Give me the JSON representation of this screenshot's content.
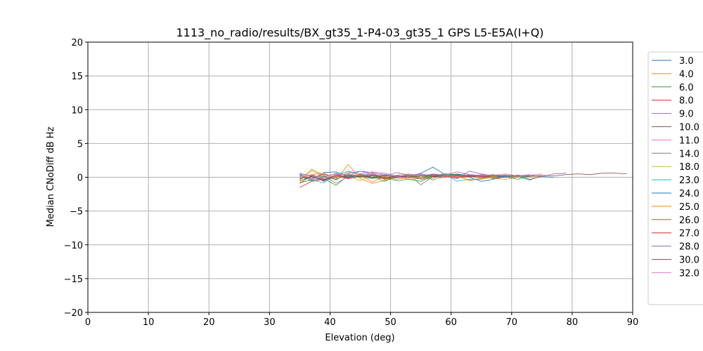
{
  "chart_data": {
    "type": "line",
    "title": "1113_no_radio/results/BX_gt35_1-P4-03_gt35_1 GPS L5-E5A(I+Q)",
    "xlabel": "Elevation (deg)",
    "ylabel": "Median CNoDiff dB Hz",
    "xlim": [
      0,
      90
    ],
    "ylim": [
      -20,
      20
    ],
    "xticks": [
      0,
      10,
      20,
      30,
      40,
      50,
      60,
      70,
      80,
      90
    ],
    "yticks": [
      -20,
      -15,
      -10,
      -5,
      0,
      5,
      10,
      15,
      20
    ],
    "grid": true,
    "legend_placement": "right",
    "x_step": 2,
    "series": [
      {
        "name": "3.0",
        "color": "#1f77b4",
        "x_start": 35,
        "values": [
          0.5,
          -0.3,
          0.7,
          0.8,
          0.2,
          0.1,
          0.4,
          -0.2,
          0.3,
          0.1,
          0.6,
          1.5,
          0.4,
          0.2,
          0.0,
          -0.6,
          -0.3,
          0.1,
          0.2,
          0.3,
          0.1,
          0.0
        ]
      },
      {
        "name": "4.0",
        "color": "#ff7f0e",
        "x_start": 35,
        "values": [
          -0.5,
          1.0,
          0.2,
          -0.4,
          1.9,
          -0.2,
          -0.9,
          -0.5,
          0.1,
          -0.3,
          -0.2,
          0.0,
          0.2,
          -0.1,
          0.3,
          0.1,
          -0.2,
          -0.3,
          0.0,
          0.2,
          0.1
        ]
      },
      {
        "name": "6.0",
        "color": "#2ca02c",
        "x_start": 35,
        "values": [
          -0.8,
          -0.4,
          -0.2,
          -1.2,
          0.3,
          0.1,
          -0.2,
          0.0,
          -0.5,
          -0.3,
          -0.6,
          0.2,
          0.1,
          0.4,
          0.3,
          0.2,
          -0.1,
          0.0,
          0.1,
          -0.4,
          0.2
        ]
      },
      {
        "name": "8.0",
        "color": "#d62728",
        "x_start": 35,
        "values": [
          -1.5,
          -0.6,
          -0.3,
          0.2,
          -0.1,
          0.4,
          0.0,
          -0.2,
          0.3,
          -0.1,
          0.2,
          0.1,
          0.0,
          0.3,
          0.2,
          -0.1,
          0.1,
          0.2,
          0.3,
          0.2
        ]
      },
      {
        "name": "9.0",
        "color": "#9467bd",
        "x_start": 35,
        "values": [
          0.3,
          -0.5,
          0.0,
          0.6,
          0.2,
          0.9,
          0.7,
          0.3,
          0.0,
          0.5,
          0.2,
          0.4,
          0.1,
          -0.2,
          0.9,
          0.5,
          0.2,
          0.0,
          0.3,
          -0.3,
          0.1,
          0.5,
          0.6
        ]
      },
      {
        "name": "10.0",
        "color": "#8c564b",
        "x_start": 35,
        "values": [
          -0.2,
          0.1,
          -0.4,
          0.0,
          0.3,
          0.2,
          0.6,
          -0.3,
          0.1,
          0.0,
          0.2,
          0.3,
          0.5,
          0.4,
          0.1,
          0.2,
          0.0,
          0.1,
          0.3,
          0.2
        ]
      },
      {
        "name": "11.0",
        "color": "#e377c2",
        "x_start": 35,
        "values": [
          0.2,
          -0.3,
          0.4,
          0.1,
          -0.2,
          0.5,
          0.8,
          0.6,
          0.2,
          0.3,
          0.4,
          0.2,
          0.1,
          0.3,
          0.0,
          0.4,
          0.2,
          0.3,
          0.1,
          0.3,
          0.5
        ]
      },
      {
        "name": "14.0",
        "color": "#7f7f7f",
        "x_start": 35,
        "values": [
          0.4,
          -0.6,
          0.2,
          -0.9,
          0.1,
          0.3,
          -0.1,
          0.2,
          0.0,
          0.4,
          -1.1,
          0.1,
          0.3,
          0.5,
          0.2,
          0.1,
          -0.2,
          0.2
        ]
      },
      {
        "name": "18.0",
        "color": "#bcbd22",
        "x_start": 35,
        "values": [
          -0.4,
          1.2,
          0.3,
          0.1,
          0.2,
          -0.5,
          0.4,
          0.1,
          0.3,
          0.5,
          0.0,
          0.2,
          0.4,
          0.1,
          -0.4,
          -0.3,
          0.0,
          0.3,
          0.2,
          0.1
        ]
      },
      {
        "name": "23.0",
        "color": "#17becf",
        "x_start": 35,
        "values": [
          0.0,
          -0.4,
          -0.8,
          0.3,
          0.9,
          0.5,
          0.2,
          0.0,
          -0.1,
          0.2,
          -0.3,
          -0.2,
          0.4,
          -0.6,
          -0.3,
          -0.2,
          0.1,
          0.2,
          0.0,
          0.2
        ]
      },
      {
        "name": "24.0",
        "color": "#1f77b4",
        "x_start": 35,
        "values": [
          0.6,
          0.1,
          -0.5,
          0.3,
          0.0,
          0.2,
          -0.1,
          0.4,
          0.2,
          0.0,
          0.3,
          0.1,
          0.2,
          0.4,
          0.3,
          0.1,
          0.2,
          0.0,
          0.3
        ]
      },
      {
        "name": "25.0",
        "color": "#ff7f0e",
        "x_start": 35,
        "values": [
          -0.3,
          0.4,
          0.6,
          -0.2,
          0.8,
          0.3,
          -0.7,
          0.1,
          -0.3,
          0.0,
          0.2,
          -0.4,
          0.1,
          0.3,
          -0.5,
          -0.2,
          0.1,
          0.3,
          0.0
        ]
      },
      {
        "name": "26.0",
        "color": "#2ca02c",
        "x_start": 35,
        "values": [
          -0.6,
          0.2,
          0.1,
          -0.3,
          0.4,
          0.0,
          0.2,
          -0.6,
          0.1,
          0.3,
          0.0,
          0.2,
          0.5,
          0.3,
          0.1,
          0.2,
          0.4,
          0.1,
          -0.3,
          0.2
        ]
      },
      {
        "name": "27.0",
        "color": "#d62728",
        "x_start": 35,
        "values": [
          -0.9,
          0.3,
          -0.6,
          0.5,
          -0.2,
          0.1,
          0.3,
          -0.1,
          0.0,
          0.2,
          -0.2,
          0.1,
          0.3,
          0.0,
          0.2,
          0.1,
          0.2,
          0.3
        ]
      },
      {
        "name": "28.0",
        "color": "#9467bd",
        "x_start": 35,
        "values": [
          0.2,
          -0.2,
          0.5,
          -0.4,
          0.6,
          0.9,
          0.4,
          0.2,
          0.7,
          0.3,
          0.5,
          0.2,
          0.3,
          0.8,
          0.4,
          0.3,
          0.2,
          0.1,
          0.2,
          0.4
        ]
      },
      {
        "name": "30.0",
        "color": "#8c564b",
        "x_start": 35,
        "values": [
          -0.1,
          0.0,
          -0.3,
          0.2,
          0.1,
          0.3,
          0.0,
          0.2,
          0.1,
          0.3,
          0.2,
          0.4,
          0.3,
          0.2,
          0.1,
          0.3,
          0.2,
          0.3,
          0.2,
          0.1,
          0.3,
          0.2,
          0.4,
          0.5,
          0.4,
          0.6,
          0.6,
          0.5
        ]
      },
      {
        "name": "32.0",
        "color": "#e377c2",
        "x_start": 35,
        "values": [
          0.1,
          0.4,
          -0.2,
          0.3,
          0.5,
          0.2,
          0.4,
          0.6,
          0.1,
          0.3,
          0.2,
          0.5,
          0.3,
          0.1,
          0.4,
          0.2,
          0.3,
          0.5,
          0.2,
          0.3
        ]
      }
    ]
  }
}
